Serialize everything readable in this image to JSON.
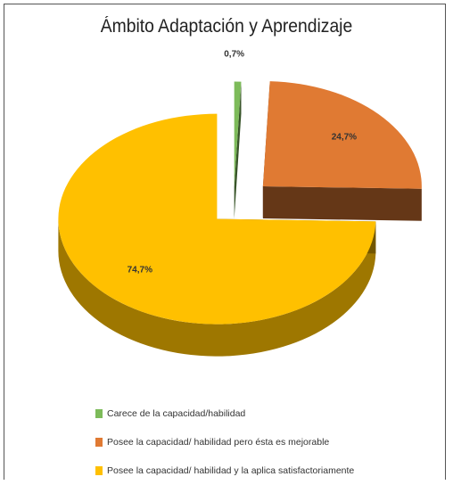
{
  "chart_data": {
    "type": "pie",
    "title": "Ámbito Adaptación y Aprendizaje",
    "slices": [
      {
        "label": "Carece de la capacidad/habilidad",
        "value": 0.7,
        "value_label": "0,7%",
        "color": "#7dbb5a"
      },
      {
        "label": "Posee la capacidad/ habilidad pero ésta es mejorable",
        "value": 24.7,
        "value_label": "24,7%",
        "color": "#e07a33"
      },
      {
        "label": "Posee la capacidad/ habilidad y la aplica satisfactoriamente",
        "value": 74.7,
        "value_label": "74,7%",
        "color": "#ffc000"
      }
    ],
    "exploded": true,
    "three_d": true,
    "legend_position": "bottom-left"
  }
}
